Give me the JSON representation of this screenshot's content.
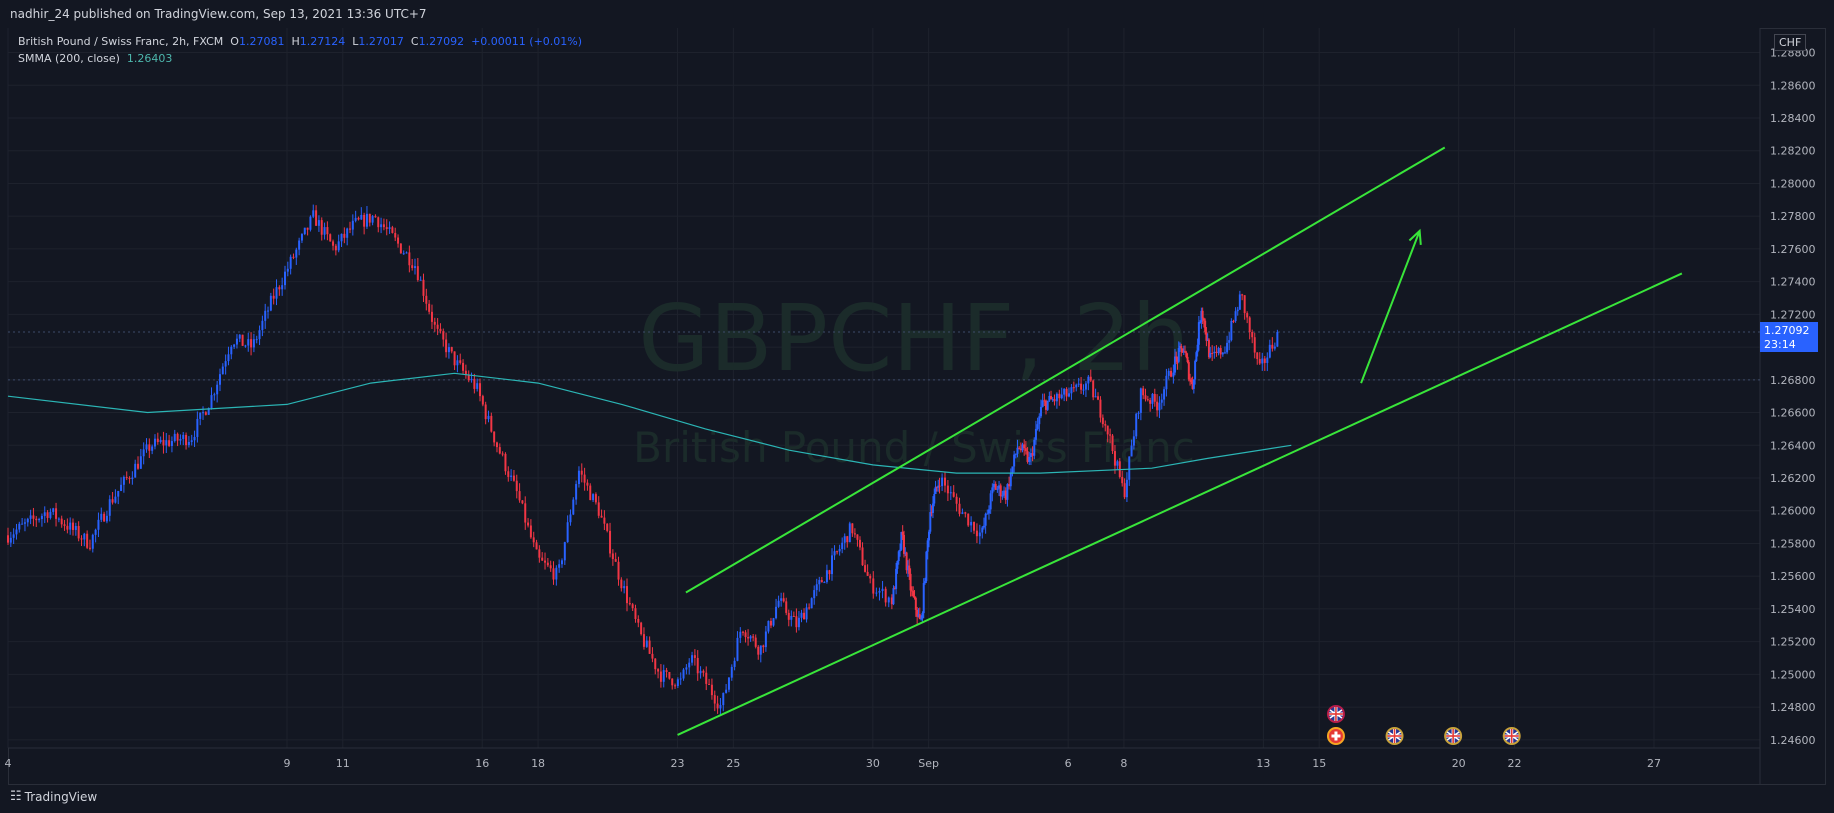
{
  "header": {
    "publish_line": "nadhir_24 published on TradingView.com, Sep 13, 2021 13:36 UTC+7"
  },
  "legend": {
    "symbol_desc": "British Pound / Swiss Franc, 2h, FXCM",
    "o_label": "O",
    "o_value": "1.27081",
    "h_label": "H",
    "h_value": "1.27124",
    "l_label": "L",
    "l_value": "1.27017",
    "c_label": "C",
    "c_value": "1.27092",
    "change": "+0.00011 (+0.01%)",
    "indicator_label": "SMMA (200, close)",
    "indicator_value": "1.26403"
  },
  "watermark": {
    "symbol": "GBPCHF, 2h",
    "description": "British Pound / Swiss Franc"
  },
  "currency": "CHF",
  "price_tag": {
    "price": "1.27092",
    "countdown": "23:14"
  },
  "footer": {
    "brand": "TradingView"
  },
  "colors": {
    "background": "#131722",
    "grid": "#1e222d",
    "up_candle": "#2962ff",
    "down_candle": "#f23645",
    "smma": "#2bb5b5",
    "channel": "#39e53a",
    "price_tag": "#2962ff"
  },
  "chart_data": {
    "type": "candlestick",
    "timeframe": "2h",
    "y_axis": {
      "labels": [
        "1.28800",
        "1.28600",
        "1.28400",
        "1.28200",
        "1.28000",
        "1.27800",
        "1.27600",
        "1.27400",
        "1.27200",
        "1.27000",
        "1.26800",
        "1.26600",
        "1.26400",
        "1.26200",
        "1.26000",
        "1.25800",
        "1.25600",
        "1.25400",
        "1.25200",
        "1.25000",
        "1.24800",
        "1.24600"
      ],
      "range": [
        1.2455,
        1.2895
      ]
    },
    "x_axis": {
      "labels": [
        "4",
        "9",
        "11",
        "16",
        "18",
        "23",
        "25",
        "30",
        "Sep",
        "6",
        "8",
        "13",
        "15",
        "20",
        "22",
        "27"
      ],
      "label_days": [
        -1,
        9,
        11,
        16,
        18,
        23,
        25,
        30,
        32,
        37,
        39,
        44,
        46,
        51,
        53,
        58
      ],
      "range_days": [
        -1,
        61.8
      ]
    },
    "smma_200": [
      [
        -1,
        1.267
      ],
      [
        4,
        1.266
      ],
      [
        9,
        1.2665
      ],
      [
        12,
        1.2678
      ],
      [
        15,
        1.2684
      ],
      [
        18,
        1.2678
      ],
      [
        21,
        1.2665
      ],
      [
        24,
        1.265
      ],
      [
        27,
        1.2637
      ],
      [
        30,
        1.2628
      ],
      [
        33,
        1.2623
      ],
      [
        36,
        1.2623
      ],
      [
        40,
        1.2626
      ],
      [
        42,
        1.2632
      ],
      [
        45,
        1.264
      ]
    ],
    "candle_path": [
      [
        -1,
        1.2585
      ],
      [
        1,
        1.26
      ],
      [
        2,
        1.259
      ],
      [
        3,
        1.258
      ],
      [
        4,
        1.2605
      ],
      [
        6,
        1.264
      ],
      [
        8,
        1.2645
      ],
      [
        9,
        1.267
      ],
      [
        10,
        1.2705
      ],
      [
        11,
        1.27
      ],
      [
        12,
        1.273
      ],
      [
        13,
        1.2755
      ],
      [
        14,
        1.278
      ],
      [
        15,
        1.276
      ],
      [
        16,
        1.2775
      ],
      [
        17,
        1.278
      ],
      [
        18,
        1.2765
      ],
      [
        19,
        1.275
      ],
      [
        20,
        1.271
      ],
      [
        21,
        1.269
      ],
      [
        22,
        1.2675
      ],
      [
        23,
        1.264
      ],
      [
        24,
        1.261
      ],
      [
        25,
        1.257
      ],
      [
        26,
        1.256
      ],
      [
        27,
        1.2625
      ],
      [
        28,
        1.26
      ],
      [
        29,
        1.256
      ],
      [
        30,
        1.2525
      ],
      [
        31,
        1.25
      ],
      [
        32,
        1.2495
      ],
      [
        32.5,
        1.251
      ],
      [
        33.5,
        1.249
      ],
      [
        34,
        1.248
      ],
      [
        35,
        1.253
      ],
      [
        36,
        1.2515
      ],
      [
        37,
        1.2545
      ],
      [
        38,
        1.253
      ],
      [
        39,
        1.255
      ],
      [
        40,
        1.257
      ],
      [
        41,
        1.259
      ],
      [
        42,
        1.2555
      ],
      [
        43,
        1.2545
      ],
      [
        44,
        1.2585
      ],
      [
        45,
        1.255
      ],
      [
        46,
        1.253
      ],
      [
        47,
        1.26
      ],
      [
        48,
        1.262
      ],
      [
        49,
        1.26
      ],
      [
        50,
        1.2585
      ],
      [
        51,
        1.2615
      ],
      [
        52,
        1.261
      ],
      [
        53,
        1.264
      ],
      [
        54,
        1.263
      ],
      [
        55,
        1.2665
      ],
      [
        56,
        1.2668
      ],
      [
        57,
        1.2672
      ],
      [
        58,
        1.2678
      ],
      [
        59,
        1.2652
      ],
      [
        60,
        1.261
      ],
      [
        61,
        1.2672
      ],
      [
        62,
        1.2665
      ],
      [
        63,
        1.269
      ],
      [
        64,
        1.27
      ],
      [
        65,
        1.2675
      ],
      [
        66,
        1.2725
      ],
      [
        67,
        1.2692
      ],
      [
        68,
        1.27
      ],
      [
        69,
        1.2732
      ],
      [
        70,
        1.2685
      ],
      [
        71,
        1.2708
      ]
    ],
    "candle_day_map": [
      [
        -1,
        -1
      ],
      [
        32,
        23.1
      ],
      [
        35,
        25.3
      ],
      [
        42,
        29.9
      ],
      [
        43,
        30.7
      ],
      [
        48,
        32.4
      ],
      [
        50,
        33.9
      ],
      [
        56,
        36.5
      ],
      [
        60,
        39.0
      ],
      [
        63,
        40.8
      ],
      [
        67,
        42.1
      ],
      [
        69,
        43.2
      ],
      [
        71,
        44.5
      ]
    ],
    "channel_lines": [
      {
        "name": "upper",
        "from": [
          23.3,
          1.255
        ],
        "to": [
          50.5,
          1.2822
        ]
      },
      {
        "name": "lower",
        "from": [
          23.0,
          1.2463
        ],
        "to": [
          59.0,
          1.2745
        ]
      }
    ],
    "projection_arrow": {
      "from": [
        47.5,
        1.2678
      ],
      "to": [
        49.6,
        1.2771
      ]
    },
    "last_price": 1.27092,
    "dotted_levels": [
      1.27092,
      1.268
    ],
    "event_markers": [
      {
        "day": 46.6,
        "row": 1,
        "kind": "gb-flag"
      },
      {
        "day": 46.6,
        "row": 0,
        "kind": "ch-flag"
      },
      {
        "day": 48.7,
        "row": 0,
        "kind": "gb-flag"
      },
      {
        "day": 50.8,
        "row": 0,
        "kind": "gb-flag"
      },
      {
        "day": 52.9,
        "row": 0,
        "kind": "gb-flag"
      }
    ]
  }
}
